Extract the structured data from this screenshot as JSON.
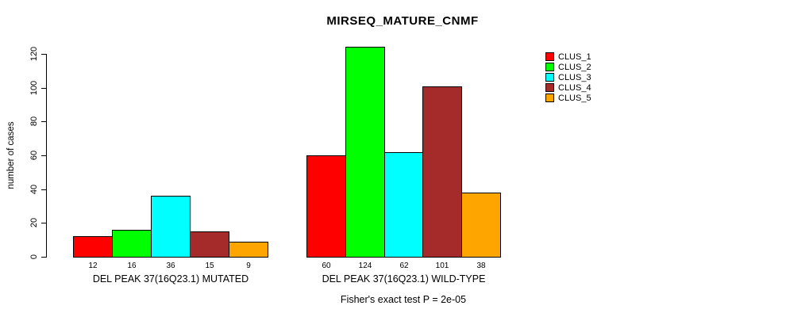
{
  "chart_data": {
    "type": "bar",
    "title": "MIRSEQ_MATURE_CNMF",
    "ylabel": "number of cases",
    "xlabel": "",
    "yticks": [
      0,
      20,
      40,
      60,
      80,
      100,
      120
    ],
    "ylim": [
      0,
      130
    ],
    "grid": false,
    "legend_position": "right",
    "categories": [
      "DEL PEAK 37(16Q23.1) MUTATED",
      "DEL PEAK 37(16Q23.1) WILD-TYPE"
    ],
    "series": [
      {
        "name": "CLUS_1",
        "color": "#ff0000",
        "values": [
          12,
          60
        ]
      },
      {
        "name": "CLUS_2",
        "color": "#00ff00",
        "values": [
          16,
          124
        ]
      },
      {
        "name": "CLUS_3",
        "color": "#00ffff",
        "values": [
          36,
          62
        ]
      },
      {
        "name": "CLUS_4",
        "color": "#a52a2a",
        "values": [
          15,
          101
        ]
      },
      {
        "name": "CLUS_5",
        "color": "#ffa500",
        "values": [
          9,
          38
        ]
      }
    ],
    "bar_value_labels": [
      [
        12,
        16,
        36,
        15,
        9
      ],
      [
        60,
        124,
        62,
        101,
        38
      ]
    ],
    "caption": "Fisher's exact test P = 2e-05"
  }
}
